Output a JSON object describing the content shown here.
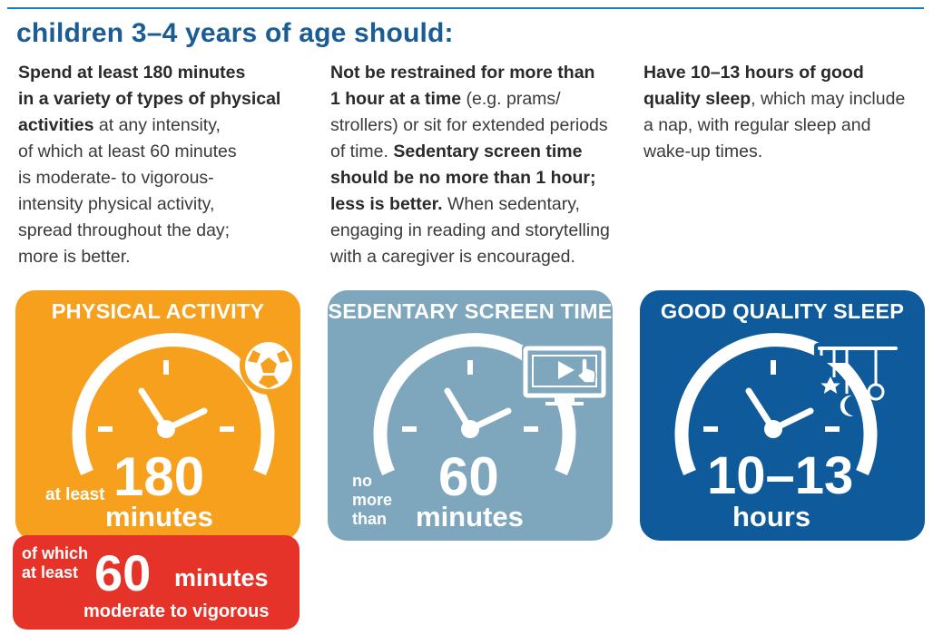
{
  "colors": {
    "heading": "#1a5c96",
    "physical_activity": "#f7a01d",
    "screen_time": "#7ea6bd",
    "sleep": "#0f5a9a",
    "callout": "#e63329"
  },
  "heading": "children 3–4 years of age should:",
  "columns": [
    {
      "id": "physical-activity",
      "lines": [
        [
          {
            "t": "Spend at least 180 minutes",
            "b": true
          }
        ],
        [
          {
            "t": "in a variety of types of physical",
            "b": true
          }
        ],
        [
          {
            "t": "activities",
            "b": true
          },
          {
            "t": " at any intensity,",
            "b": false
          }
        ],
        [
          {
            "t": "of which at least 60 minutes",
            "b": false
          }
        ],
        [
          {
            "t": "is moderate- to vigorous-",
            "b": false
          }
        ],
        [
          {
            "t": "intensity physical activity,",
            "b": false
          }
        ],
        [
          {
            "t": "spread throughout the day;",
            "b": false
          }
        ],
        [
          {
            "t": "more is better.",
            "b": false
          }
        ]
      ]
    },
    {
      "id": "sedentary",
      "lines": [
        [
          {
            "t": "Not be restrained for more than",
            "b": true
          }
        ],
        [
          {
            "t": "1 hour at a time",
            "b": true
          },
          {
            "t": " (e.g. prams/",
            "b": false
          }
        ],
        [
          {
            "t": "strollers) or sit for extended periods",
            "b": false
          }
        ],
        [
          {
            "t": "of time. ",
            "b": false
          },
          {
            "t": "Sedentary screen time",
            "b": true
          }
        ],
        [
          {
            "t": "should be no more than 1 hour;",
            "b": true
          }
        ],
        [
          {
            "t": "less is better.",
            "b": true
          },
          {
            "t": " When sedentary,",
            "b": false
          }
        ],
        [
          {
            "t": "engaging in reading and storytelling",
            "b": false
          }
        ],
        [
          {
            "t": "with a caregiver is encouraged.",
            "b": false
          }
        ]
      ]
    },
    {
      "id": "sleep",
      "lines": [
        [
          {
            "t": "Have 10–13 hours of good",
            "b": true
          }
        ],
        [
          {
            "t": "quality sleep",
            "b": true
          },
          {
            "t": ", which may include",
            "b": false
          }
        ],
        [
          {
            "t": "a nap, with regular sleep and",
            "b": false
          }
        ],
        [
          {
            "t": "wake-up times.",
            "b": false
          }
        ]
      ]
    }
  ],
  "cards": {
    "physical_activity": {
      "title": "PHYSICAL ACTIVITY",
      "prefix": "at least",
      "number": "180",
      "unit": "minutes",
      "icon": "soccer-ball-icon"
    },
    "screen_time": {
      "title": "SEDENTARY SCREEN TIME",
      "prefix_lines": [
        "no",
        "more",
        "than"
      ],
      "number": "60",
      "unit": "minutes",
      "icon": "tv-screen-icon"
    },
    "sleep": {
      "title": "GOOD QUALITY SLEEP",
      "number": "10–13",
      "unit": "hours",
      "icon": "baby-mobile-icon"
    }
  },
  "callout": {
    "label_lines": [
      "of which",
      "at least"
    ],
    "number": "60",
    "unit": "minutes",
    "subtitle": "moderate to vigorous"
  }
}
